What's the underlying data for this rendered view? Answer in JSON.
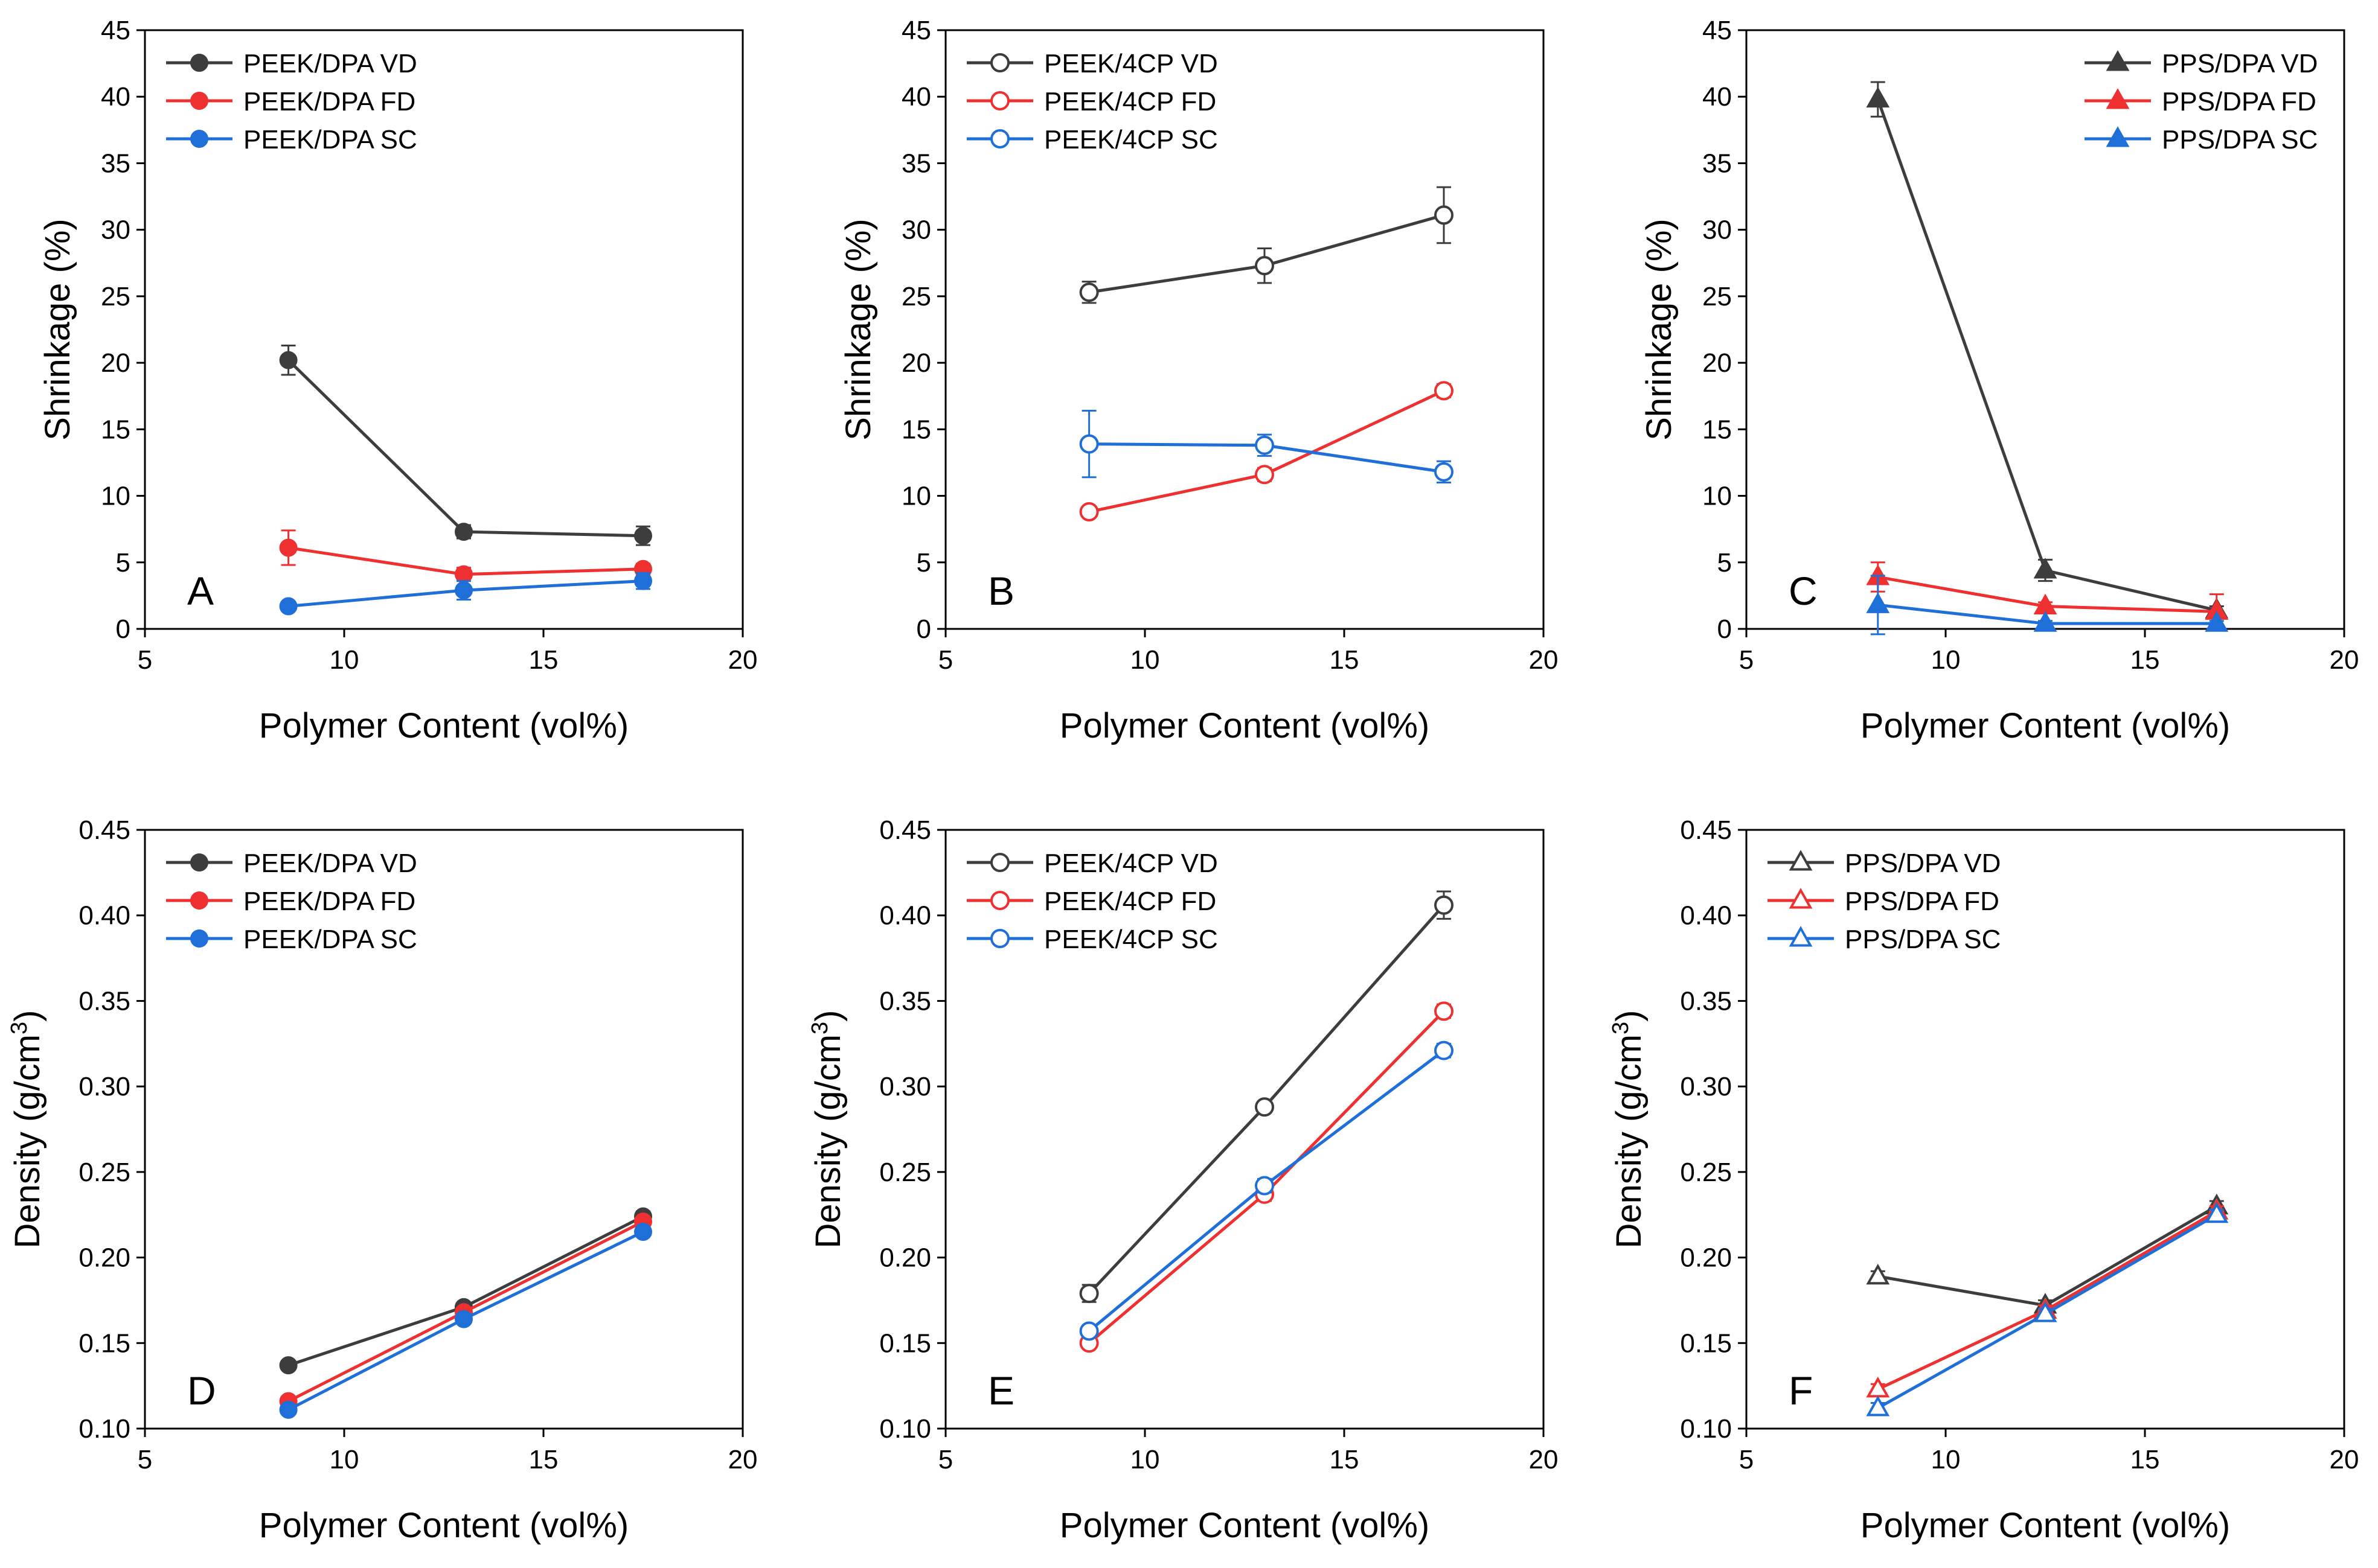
{
  "colors": {
    "VD": "#3d3d3d",
    "FD": "#ee3030",
    "SC": "#1f6fd8",
    "axis": "#000000"
  },
  "chart_data": [
    {
      "panel_label": "A",
      "type": "line",
      "xlabel": "Polymer Content (vol%)",
      "ylabel": "Shrinkage (%)",
      "xlim": [
        5,
        20
      ],
      "ylim": [
        0,
        45
      ],
      "xticks": [
        "5",
        "10",
        "15",
        "20"
      ],
      "yticks": [
        "0",
        "5",
        "10",
        "15",
        "20",
        "25",
        "30",
        "35",
        "40",
        "45"
      ],
      "legend_position": "top-left",
      "marker": "circle",
      "filled": true,
      "series": [
        {
          "name": "PEEK/DPA VD",
          "color_key": "VD",
          "x": [
            8.6,
            13.0,
            17.5
          ],
          "y": [
            20.2,
            7.3,
            7.0
          ],
          "err": [
            1.1,
            0.5,
            0.7
          ]
        },
        {
          "name": "PEEK/DPA FD",
          "color_key": "FD",
          "x": [
            8.6,
            13.0,
            17.5
          ],
          "y": [
            6.1,
            4.1,
            4.5
          ],
          "err": [
            1.3,
            0.5,
            0.4
          ]
        },
        {
          "name": "PEEK/DPA SC",
          "color_key": "SC",
          "x": [
            8.6,
            13.0,
            17.5
          ],
          "y": [
            1.7,
            2.9,
            3.6
          ],
          "err": [
            0.2,
            0.7,
            0.6
          ]
        }
      ]
    },
    {
      "panel_label": "B",
      "type": "line",
      "xlabel": "Polymer Content (vol%)",
      "ylabel": "Shrinkage (%)",
      "xlim": [
        5,
        20
      ],
      "ylim": [
        0,
        45
      ],
      "xticks": [
        "5",
        "10",
        "15",
        "20"
      ],
      "yticks": [
        "0",
        "5",
        "10",
        "15",
        "20",
        "25",
        "30",
        "35",
        "40",
        "45"
      ],
      "legend_position": "top-left",
      "marker": "circle",
      "filled": false,
      "series": [
        {
          "name": "PEEK/4CP VD",
          "color_key": "VD",
          "x": [
            8.6,
            13.0,
            17.5
          ],
          "y": [
            25.3,
            27.3,
            31.1
          ],
          "err": [
            0.8,
            1.3,
            2.1
          ]
        },
        {
          "name": "PEEK/4CP FD",
          "color_key": "FD",
          "x": [
            8.6,
            13.0,
            17.5
          ],
          "y": [
            8.8,
            11.6,
            17.9
          ],
          "err": [
            0.4,
            0.5,
            0.5
          ]
        },
        {
          "name": "PEEK/4CP SC",
          "color_key": "SC",
          "x": [
            8.6,
            13.0,
            17.5
          ],
          "y": [
            13.9,
            13.8,
            11.8
          ],
          "err": [
            2.5,
            0.8,
            0.8
          ]
        }
      ]
    },
    {
      "panel_label": "C",
      "type": "line",
      "xlabel": "Polymer Content (vol%)",
      "ylabel": "Shrinkage (%)",
      "xlim": [
        5,
        20
      ],
      "ylim": [
        0,
        45
      ],
      "xticks": [
        "5",
        "10",
        "15",
        "20"
      ],
      "yticks": [
        "0",
        "5",
        "10",
        "15",
        "20",
        "25",
        "30",
        "35",
        "40",
        "45"
      ],
      "legend_position": "top-right",
      "marker": "triangle",
      "filled": true,
      "series": [
        {
          "name": "PPS/DPA VD",
          "color_key": "VD",
          "x": [
            8.3,
            12.5,
            16.8
          ],
          "y": [
            39.8,
            4.4,
            1.4
          ],
          "err": [
            1.3,
            0.8,
            0.3
          ]
        },
        {
          "name": "PPS/DPA FD",
          "color_key": "FD",
          "x": [
            8.3,
            12.5,
            16.8
          ],
          "y": [
            3.9,
            1.7,
            1.3
          ],
          "err": [
            1.1,
            0.3,
            1.3
          ]
        },
        {
          "name": "PPS/DPA SC",
          "color_key": "SC",
          "x": [
            8.3,
            12.5,
            16.8
          ],
          "y": [
            1.8,
            0.4,
            0.4
          ],
          "err": [
            2.2,
            0.2,
            0.2
          ]
        }
      ]
    },
    {
      "panel_label": "D",
      "type": "line",
      "xlabel": "Polymer Content (vol%)",
      "ylabel": "Density (g/cm",
      "ylabel_sup": "3",
      "ylabel_tail": ")",
      "xlim": [
        5,
        20
      ],
      "ylim": [
        0.1,
        0.45
      ],
      "xticks": [
        "5",
        "10",
        "15",
        "20"
      ],
      "yticks": [
        "0.10",
        "0.15",
        "0.20",
        "0.25",
        "0.30",
        "0.35",
        "0.40",
        "0.45"
      ],
      "legend_position": "top-left",
      "marker": "circle",
      "filled": true,
      "series": [
        {
          "name": "PEEK/DPA VD",
          "color_key": "VD",
          "x": [
            8.6,
            13.0,
            17.5
          ],
          "y": [
            0.137,
            0.171,
            0.224
          ],
          "err": [
            0.002,
            0.002,
            0.003
          ]
        },
        {
          "name": "PEEK/DPA FD",
          "color_key": "FD",
          "x": [
            8.6,
            13.0,
            17.5
          ],
          "y": [
            0.116,
            0.168,
            0.221
          ],
          "err": [
            0.002,
            0.002,
            0.002
          ]
        },
        {
          "name": "PEEK/DPA SC",
          "color_key": "SC",
          "x": [
            8.6,
            13.0,
            17.5
          ],
          "y": [
            0.111,
            0.164,
            0.215
          ],
          "err": [
            0.002,
            0.002,
            0.002
          ]
        }
      ]
    },
    {
      "panel_label": "E",
      "type": "line",
      "xlabel": "Polymer Content (vol%)",
      "ylabel": "Density (g/cm",
      "ylabel_sup": "3",
      "ylabel_tail": ")",
      "xlim": [
        5,
        20
      ],
      "ylim": [
        0.1,
        0.45
      ],
      "xticks": [
        "5",
        "10",
        "15",
        "20"
      ],
      "yticks": [
        "0.10",
        "0.15",
        "0.20",
        "0.25",
        "0.30",
        "0.35",
        "0.40",
        "0.45"
      ],
      "legend_position": "top-left",
      "marker": "circle",
      "filled": false,
      "series": [
        {
          "name": "PEEK/4CP VD",
          "color_key": "VD",
          "x": [
            8.6,
            13.0,
            17.5
          ],
          "y": [
            0.179,
            0.288,
            0.406
          ],
          "err": [
            0.005,
            0.003,
            0.008
          ]
        },
        {
          "name": "PEEK/4CP FD",
          "color_key": "FD",
          "x": [
            8.6,
            13.0,
            17.5
          ],
          "y": [
            0.15,
            0.237,
            0.344
          ],
          "err": [
            0.003,
            0.004,
            0.004
          ]
        },
        {
          "name": "PEEK/4CP SC",
          "color_key": "SC",
          "x": [
            8.6,
            13.0,
            17.5
          ],
          "y": [
            0.157,
            0.242,
            0.321
          ],
          "err": [
            0.003,
            0.004,
            0.004
          ]
        }
      ]
    },
    {
      "panel_label": "F",
      "type": "line",
      "xlabel": "Polymer Content (vol%)",
      "ylabel": "Density (g/cm",
      "ylabel_sup": "3",
      "ylabel_tail": ")",
      "xlim": [
        5,
        20
      ],
      "ylim": [
        0.1,
        0.45
      ],
      "xticks": [
        "5",
        "10",
        "15",
        "20"
      ],
      "yticks": [
        "0.10",
        "0.15",
        "0.20",
        "0.25",
        "0.30",
        "0.35",
        "0.40",
        "0.45"
      ],
      "legend_position": "top-left",
      "marker": "triangle",
      "filled": false,
      "series": [
        {
          "name": "PPS/DPA VD",
          "color_key": "VD",
          "x": [
            8.3,
            12.5,
            16.8
          ],
          "y": [
            0.189,
            0.172,
            0.23
          ],
          "err": [
            0.003,
            0.003,
            0.003
          ]
        },
        {
          "name": "PPS/DPA FD",
          "color_key": "FD",
          "x": [
            8.3,
            12.5,
            16.8
          ],
          "y": [
            0.123,
            0.169,
            0.227
          ],
          "err": [
            0.003,
            0.003,
            0.003
          ]
        },
        {
          "name": "PPS/DPA SC",
          "color_key": "SC",
          "x": [
            8.3,
            12.5,
            16.8
          ],
          "y": [
            0.112,
            0.167,
            0.225
          ],
          "err": [
            0.003,
            0.003,
            0.003
          ]
        }
      ]
    }
  ]
}
